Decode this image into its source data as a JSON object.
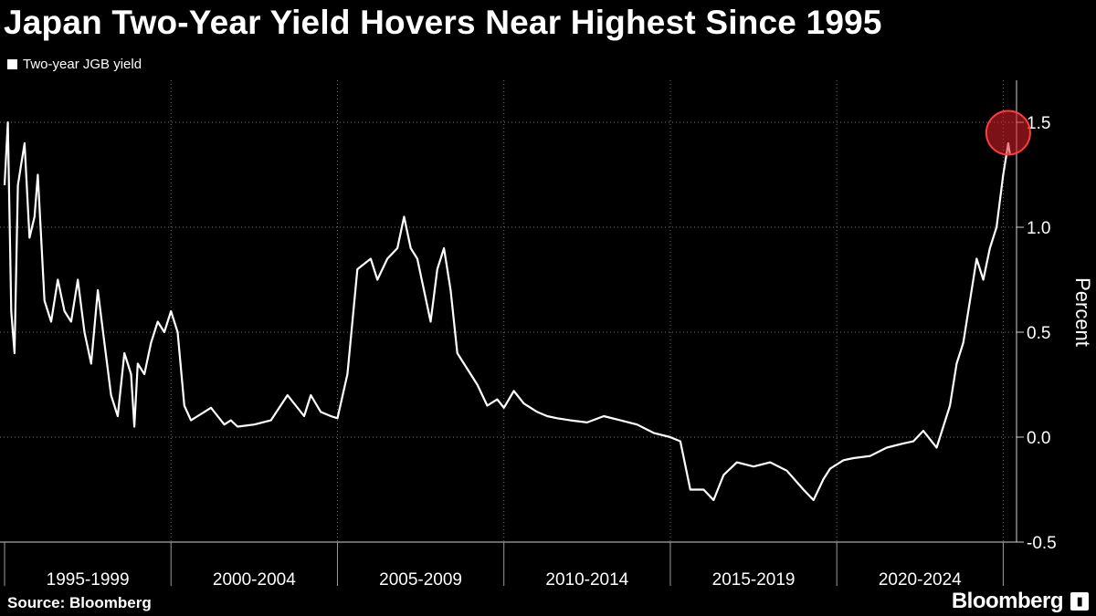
{
  "header": {
    "title": "Japan Two-Year Yield Hovers Near Highest Since 1995"
  },
  "footer": {
    "source": "Source: Bloomberg",
    "brand": "Bloomberg",
    "brand_icon": "bloomberg-logo-icon"
  },
  "colors": {
    "background": "#000000",
    "series": "#ffffff",
    "highlight": "#e0202a"
  },
  "chart_data": {
    "type": "line",
    "title": "Japan Two-Year Yield Hovers Near Highest Since 1995",
    "xlabel": "",
    "ylabel": "Percent",
    "ylim": [
      -0.5,
      1.7
    ],
    "xlim": [
      1995.0,
      2025.4
    ],
    "y_ticks": [
      {
        "value": 1.5,
        "label": "1.5"
      },
      {
        "value": 1.0,
        "label": "1.0"
      },
      {
        "value": 0.5,
        "label": "0.5"
      },
      {
        "value": 0.0,
        "label": "0.0"
      },
      {
        "value": -0.5,
        "label": "-0.5"
      }
    ],
    "x_period_labels": [
      {
        "label": "1995-1999",
        "start": 1995,
        "end": 2000
      },
      {
        "label": "2000-2004",
        "start": 2000,
        "end": 2005
      },
      {
        "label": "2005-2009",
        "start": 2005,
        "end": 2010
      },
      {
        "label": "2010-2014",
        "start": 2010,
        "end": 2015
      },
      {
        "label": "2015-2019",
        "start": 2015,
        "end": 2020
      },
      {
        "label": "2020-2024",
        "start": 2020,
        "end": 2025
      }
    ],
    "grid": true,
    "legend_position": "top-left",
    "highlight": {
      "x": 2025.15,
      "y": 1.45
    },
    "series": [
      {
        "name": "Two-year JGB yield",
        "x": [
          1995.0,
          1995.1,
          1995.2,
          1995.3,
          1995.4,
          1995.5,
          1995.6,
          1995.75,
          1995.9,
          1996.0,
          1996.2,
          1996.4,
          1996.6,
          1996.8,
          1997.0,
          1997.2,
          1997.4,
          1997.6,
          1997.8,
          1998.0,
          1998.2,
          1998.4,
          1998.6,
          1998.8,
          1998.9,
          1999.0,
          1999.2,
          1999.4,
          1999.6,
          1999.8,
          2000.0,
          2000.2,
          2000.4,
          2000.6,
          2000.8,
          2001.0,
          2001.2,
          2001.4,
          2001.6,
          2001.8,
          2002.0,
          2002.5,
          2003.0,
          2003.5,
          2004.0,
          2004.2,
          2004.5,
          2004.8,
          2005.0,
          2005.3,
          2005.6,
          2006.0,
          2006.2,
          2006.5,
          2006.8,
          2007.0,
          2007.2,
          2007.4,
          2007.6,
          2007.8,
          2008.0,
          2008.2,
          2008.4,
          2008.6,
          2008.8,
          2009.0,
          2009.2,
          2009.5,
          2009.8,
          2010.0,
          2010.3,
          2010.6,
          2011.0,
          2011.3,
          2011.6,
          2012.0,
          2012.5,
          2013.0,
          2013.5,
          2014.0,
          2014.5,
          2015.0,
          2015.3,
          2015.6,
          2016.0,
          2016.3,
          2016.6,
          2017.0,
          2017.5,
          2018.0,
          2018.5,
          2019.0,
          2019.3,
          2019.6,
          2019.8,
          2020.0,
          2020.2,
          2020.5,
          2021.0,
          2021.5,
          2022.0,
          2022.3,
          2022.6,
          2022.8,
          2023.0,
          2023.2,
          2023.4,
          2023.6,
          2023.8,
          2024.0,
          2024.2,
          2024.4,
          2024.6,
          2024.8,
          2025.0,
          2025.1,
          2025.15,
          2025.2
        ],
        "values": [
          1.2,
          1.5,
          0.6,
          0.4,
          1.2,
          1.3,
          1.4,
          0.95,
          1.05,
          1.25,
          0.65,
          0.55,
          0.75,
          0.6,
          0.55,
          0.75,
          0.5,
          0.35,
          0.7,
          0.45,
          0.2,
          0.1,
          0.4,
          0.3,
          0.05,
          0.35,
          0.3,
          0.45,
          0.55,
          0.5,
          0.6,
          0.5,
          0.15,
          0.08,
          0.1,
          0.12,
          0.14,
          0.1,
          0.06,
          0.08,
          0.05,
          0.06,
          0.08,
          0.2,
          0.1,
          0.2,
          0.12,
          0.1,
          0.09,
          0.3,
          0.8,
          0.85,
          0.75,
          0.85,
          0.9,
          1.05,
          0.9,
          0.85,
          0.7,
          0.55,
          0.8,
          0.9,
          0.7,
          0.4,
          0.35,
          0.3,
          0.25,
          0.15,
          0.18,
          0.14,
          0.22,
          0.16,
          0.12,
          0.1,
          0.09,
          0.08,
          0.07,
          0.1,
          0.08,
          0.06,
          0.02,
          0.0,
          -0.02,
          -0.25,
          -0.25,
          -0.3,
          -0.18,
          -0.12,
          -0.14,
          -0.12,
          -0.16,
          -0.25,
          -0.3,
          -0.2,
          -0.15,
          -0.13,
          -0.11,
          -0.1,
          -0.09,
          -0.05,
          -0.03,
          -0.02,
          0.03,
          -0.01,
          -0.05,
          0.05,
          0.15,
          0.35,
          0.45,
          0.65,
          0.85,
          0.75,
          0.9,
          1.0,
          1.25,
          1.35,
          1.4,
          1.35
        ]
      }
    ]
  }
}
